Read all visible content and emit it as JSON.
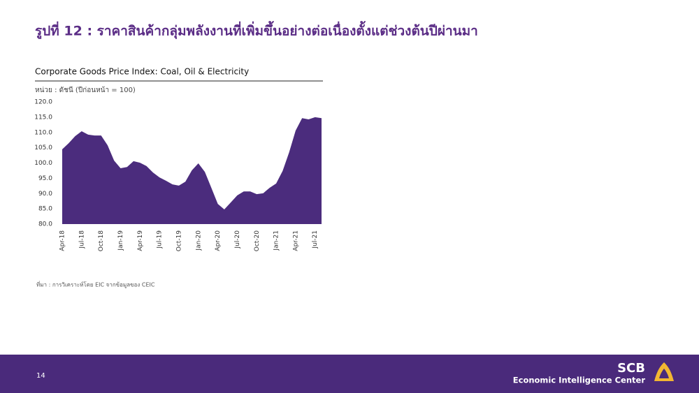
{
  "slide": {
    "title": "รูปที่ 12 : ราคาสินค้ากลุ่มพลังงานที่เพิ่มขึ้นอย่างต่อเนื่องตั้งแต่ช่วงต้นปีผ่านมา",
    "source": "ที่มา : การวิเคราะห์โดย EIC จากข้อมูลของ CEIC",
    "page_number": "14"
  },
  "logo": {
    "brand": "SCB",
    "unit": "Economic Intelligence Center"
  },
  "chart_data": {
    "type": "area",
    "title": "Corporate Goods Price Index: Coal, Oil & Electricity",
    "subtitle": "หน่วย : ดัชนี (ปีก่อนหน้า = 100)",
    "categories": [
      "Apr-18",
      null,
      null,
      "Jul-18",
      null,
      null,
      "Oct-18",
      null,
      null,
      "Jan-19",
      null,
      null,
      "Apr-19",
      null,
      null,
      "Jul-19",
      null,
      null,
      "Oct-19",
      null,
      null,
      "Jan-20",
      null,
      null,
      "Apr-20",
      null,
      null,
      "Jul-20",
      null,
      null,
      "Oct-20",
      null,
      null,
      "Jan-21",
      null,
      null,
      "Apr-21",
      null,
      null,
      "Jul-21",
      null
    ],
    "values": [
      104.5,
      106.5,
      108.8,
      110.4,
      109.3,
      109.0,
      109.0,
      105.8,
      100.8,
      98.3,
      98.7,
      100.6,
      100.1,
      99.0,
      96.9,
      95.3,
      94.2,
      93.0,
      92.6,
      93.9,
      97.6,
      99.9,
      97.1,
      91.9,
      86.6,
      84.8,
      87.1,
      89.4,
      90.7,
      90.7,
      89.8,
      90.1,
      91.9,
      93.3,
      97.4,
      103.5,
      110.6,
      114.7,
      114.3,
      115.0,
      114.7
    ],
    "color": "#4b2c7d",
    "ylim": [
      80,
      120
    ],
    "yticks": [
      {
        "value": 80,
        "label": "80.0"
      },
      {
        "value": 85,
        "label": "85.0"
      },
      {
        "value": 90,
        "label": "90.0"
      },
      {
        "value": 95,
        "label": "95.0"
      },
      {
        "value": 100,
        "label": "100.0"
      },
      {
        "value": 105,
        "label": "105.0"
      },
      {
        "value": 110,
        "label": "110.0"
      },
      {
        "value": 115,
        "label": "115.0"
      },
      {
        "value": 120,
        "label": "120.0"
      }
    ],
    "grid": false
  }
}
